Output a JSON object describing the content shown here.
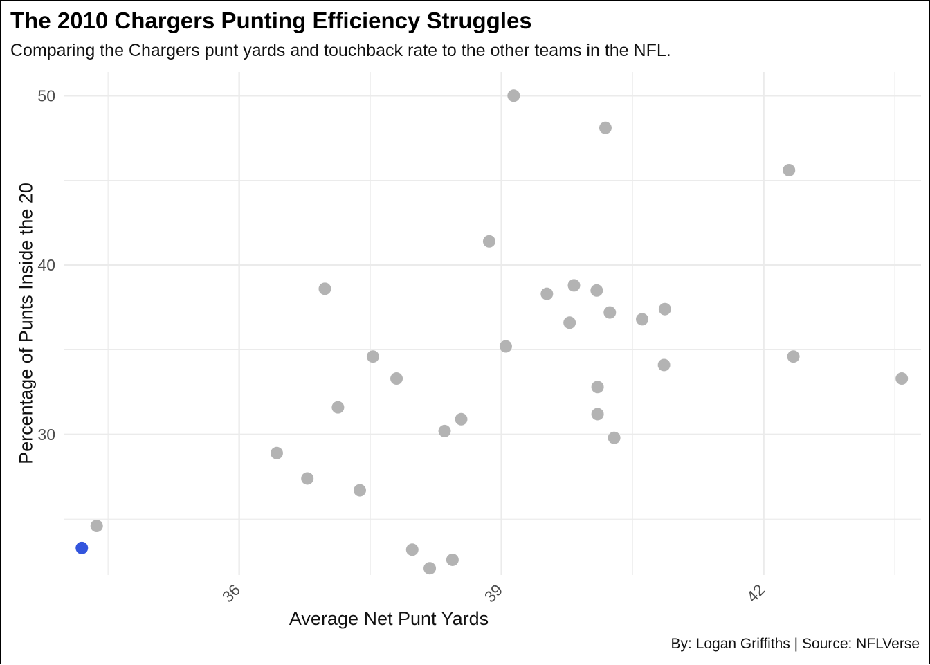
{
  "title": "The 2010 Chargers Punting Efficiency Struggles",
  "subtitle": "Comparing the Chargers punt yards and touchback rate to the other teams in the NFL.",
  "caption": "By: Logan Griffiths | Source: NFLVerse",
  "colors": {
    "highlight": "#3355dd",
    "other": "#b3b3b3",
    "grid": "#ebebeb"
  },
  "chart_data": {
    "type": "scatter",
    "xlabel": "Average Net Punt Yards",
    "ylabel": "Percentage of Punts Inside the 20",
    "xlim": [
      34.0,
      43.8
    ],
    "ylim": [
      21.7,
      51.4
    ],
    "x_ticks": [
      36,
      39,
      42
    ],
    "y_ticks": [
      30,
      40,
      50
    ],
    "grid": true,
    "points": [
      {
        "x": 34.2,
        "y": 23.3,
        "highlight": true
      },
      {
        "x": 34.37,
        "y": 24.6
      },
      {
        "x": 36.43,
        "y": 28.9
      },
      {
        "x": 36.78,
        "y": 27.4
      },
      {
        "x": 36.98,
        "y": 38.6
      },
      {
        "x": 37.13,
        "y": 31.6
      },
      {
        "x": 37.38,
        "y": 26.7
      },
      {
        "x": 37.53,
        "y": 34.6
      },
      {
        "x": 37.8,
        "y": 33.3
      },
      {
        "x": 37.98,
        "y": 23.2
      },
      {
        "x": 38.18,
        "y": 22.1
      },
      {
        "x": 38.35,
        "y": 30.2
      },
      {
        "x": 38.44,
        "y": 22.6
      },
      {
        "x": 38.54,
        "y": 30.9
      },
      {
        "x": 38.86,
        "y": 41.4
      },
      {
        "x": 39.05,
        "y": 35.2
      },
      {
        "x": 39.14,
        "y": 50.0
      },
      {
        "x": 39.52,
        "y": 38.3
      },
      {
        "x": 39.78,
        "y": 36.6
      },
      {
        "x": 39.83,
        "y": 38.8
      },
      {
        "x": 40.09,
        "y": 38.5
      },
      {
        "x": 40.1,
        "y": 32.8
      },
      {
        "x": 40.1,
        "y": 31.2
      },
      {
        "x": 40.19,
        "y": 48.1
      },
      {
        "x": 40.24,
        "y": 37.2
      },
      {
        "x": 40.29,
        "y": 29.8
      },
      {
        "x": 40.61,
        "y": 36.8
      },
      {
        "x": 40.86,
        "y": 34.1
      },
      {
        "x": 40.87,
        "y": 37.4
      },
      {
        "x": 42.29,
        "y": 45.6
      },
      {
        "x": 42.34,
        "y": 34.6
      },
      {
        "x": 43.58,
        "y": 33.3
      }
    ]
  }
}
